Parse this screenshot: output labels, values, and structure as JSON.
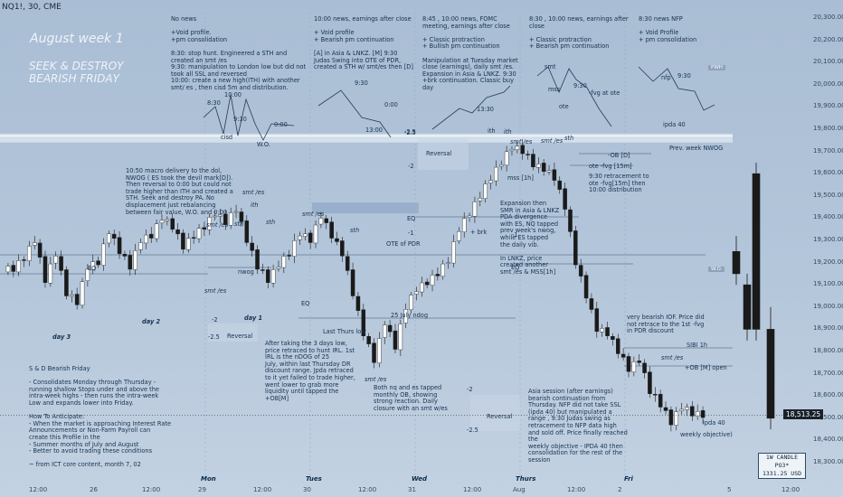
{
  "header": {
    "symbol_line": "NQ1!, 30, CME"
  },
  "title_overlay": {
    "line1": "August week 1",
    "line2": "SEEK & DESTROY",
    "line3": "BEARISH FRIDAY"
  },
  "day_notes": [
    "No news\n\n+Void profile.\n+pm consolidation\n\n8:30: stop hunt. Engineered a STH and\ncreated an smt /es\n9:30: manipulation to London low but did not\ntook all SSL and reversed\n10:00: create a new high(ITH) with another\nsmt/ es , then cisd 5m and distribution.",
    "10:00 news, earnings after close\n\n+ Void profile\n+ Bearish pm continuation\n\n[A] in Asia & LNKZ. [M] 9:30\nJudas Swing into OTE of PDR,\ncreated a STH w/ smt/es then [D]",
    "8:45 , 10:00 news, FOMC\nmeeting, earnings after close\n\n+ Classic protraction\n+ Bullish pm continuation\n\nManipulation at Tuesday market\nclose (earnings), daily smt /es.\nExpansion in Asia & LNKZ. 9:30\n+brk continuation. Classic buy\nday",
    "8:30 , 10:00 news, earnings after\nclose\n\n+ Classic protraction\n+ Bearish pm continuation",
    "8:30 news NFP\n\n+ Void Profile\n+ pm consolidation"
  ],
  "annotations": {
    "macro": "10:50 macro delivery to the dol,\nNWOG ( ES took the devil mark[D]).\nThen reversal to 0:00 but could not\ntrade higher than ITH and created a\nSTH. Seek and destroy PA. No\ndisplacement just rebalancing\nbetween fair value, W.O. and 0:00",
    "expansion": "Expansion then\nSMR in Asia & LNKZ\nPDA divergence\nwith ES, NQ tapped\nprev week's nwog,\nwhile ES tapped\nthe daily vib.\n\nIn LNKZ, price\ncreated another\nsmt /es & MSS[1h]",
    "retracement": "9:30 retracement to\note -fvg[15m] then\n10:00 distribution",
    "after3days": "After taking the 3 days low,\nprice retraced to hunt IRL. 1st\nIRL is the nDOG of 25\nJuly, within last Thursday DR\ndiscount range. Jpda retraced\nto it yet failed to trade higher,\nwent lower to grab more\nliquidity until tapped the\n+OB[M]",
    "both": "Both nq and es tapped\nmonthly OB, showing\nstrong reaction. Daily\nclosure with an smt w/es",
    "bearish_iof": "very bearish IOF. Price did\nnot retrace to the 1st -fvg\nin PDR discount",
    "asia": "Asia session (after earnings)\nbearish continuation from\nThursday. NFP did not take SSL\n(ipda 40) but manipulated a\nrange , 9:30 Judas swing as\nretracement to NFP data high\nand sold off. Price finally reached the\nweekly objective - IPDA 40 then\nconsolidation for the rest of the\nsession",
    "summary": "S & D Bearish Friday\n\n- Consolidates Monday through Thursday -\nrunning shallow Stops under and above the\nintra-week highs - then runs the intra-week\nLow and expands lower into Friday.\n\nHow To Anticipate:\n- When the market is approaching Interest Rate\nAnnouncements or Non-Farm Payroll can\ncreate this Profile in the\n- Summer months of July and August\n- Better to avoid trading these conditions\n\n~ from ICT core content, month 7, 02"
  },
  "levels": {
    "prev_week_nwog": "Prev. week NWOG",
    "ob": "-OB [D]",
    "ote_fvg": "ote -fvg [15m]",
    "ote_pdr": "OTE of PDR",
    "ndog": "25 July ndog",
    "sibi": "SIBI 1h",
    "ob_open": "+OB [M] open",
    "ipda40": "ipda 40",
    "weekly_obj": "weekly objective)",
    "last_thurs_low": "Last Thurs low",
    "reversal": "Reversal",
    "eq": "EQ",
    "nwog": "nwog",
    "brk": "+ brk",
    "mss1h": "mss [1h]",
    "day1": "day 1",
    "day2": "day 2",
    "day3": "day 3",
    "smt_es": "smt /es",
    "sth": "sth",
    "ith": "ith",
    "fib_m1": "-1",
    "fib_m2": "-2",
    "fib_m25": "-2.5",
    "wo": "W.O.",
    "pwh": "PWH"
  },
  "sketch_labels": {
    "s1": [
      "8:30",
      "10:00",
      "9:30",
      "0:00",
      "cisd",
      "W.O."
    ],
    "s2": [
      "9:30",
      "0:00",
      "13:00",
      "-2.5"
    ],
    "s3": [
      "13:30",
      "ith"
    ],
    "s4": [
      "smt",
      "mss",
      "-fvg at ote",
      "ote",
      "9:30"
    ],
    "s5": [
      "nfp",
      "9:30",
      "ipda 40"
    ]
  },
  "price_axis": [
    "20,300.00",
    "20,200.00",
    "20,100.00",
    "20,000.00",
    "19,900.00",
    "19,800.00",
    "19,700.00",
    "19,600.00",
    "19,500.00",
    "19,400.00",
    "19,300.00",
    "19,200.00",
    "19,100.00",
    "19,000.00",
    "18,900.00",
    "18,800.00",
    "18,700.00",
    "18,600.00",
    "18,500.00",
    "18,400.00",
    "18,300.00"
  ],
  "current_price": "18,513.25",
  "time_axis": [
    "12:00",
    "26",
    "12:00",
    "29",
    "12:00",
    "30",
    "12:00",
    "31",
    "12:00",
    "Aug",
    "12:00",
    "2",
    "5",
    "12:00"
  ],
  "day_axis": [
    "Mon",
    "Tues",
    "Wed",
    "Thurs",
    "Fri"
  ],
  "candle_box": {
    "line1": "1W CANDLE PO3*",
    "line2": "1331.25 USD"
  },
  "colors": {
    "bull": "#ffffff",
    "bear": "#1a1a1a",
    "note": "#16324f",
    "nwog": "#dfe8f2"
  },
  "chart_data": {
    "type": "candlestick",
    "y_axis_range": [
      18300,
      20300
    ],
    "key_prices": {
      "prev_week_nwog_top": 19780,
      "prev_week_nwog_bottom": 19740,
      "current": 18513.25,
      "ob_open": 18740,
      "sibi": 18810
    },
    "path_close": [
      19170,
      19220,
      19300,
      19120,
      19240,
      19060,
      19020,
      19180,
      19200,
      19340,
      19250,
      19180,
      19300,
      19320,
      19400,
      19360,
      19270,
      19320,
      19360,
      19420,
      19380,
      19440,
      19300,
      19180,
      19120,
      19190,
      19240,
      19330,
      19300,
      19410,
      19320,
      19240,
      19060,
      18880,
      18760,
      18930,
      18820,
      19000,
      19080,
      19110,
      19150,
      19210,
      19350,
      19420,
      19500,
      19580,
      19650,
      19720,
      19700,
      19640,
      19620,
      19580,
      19450,
      19200,
      19050,
      18900,
      18880,
      18800,
      18720,
      18760,
      18620,
      18560,
      18480,
      18550,
      18520,
      18513
    ]
  }
}
